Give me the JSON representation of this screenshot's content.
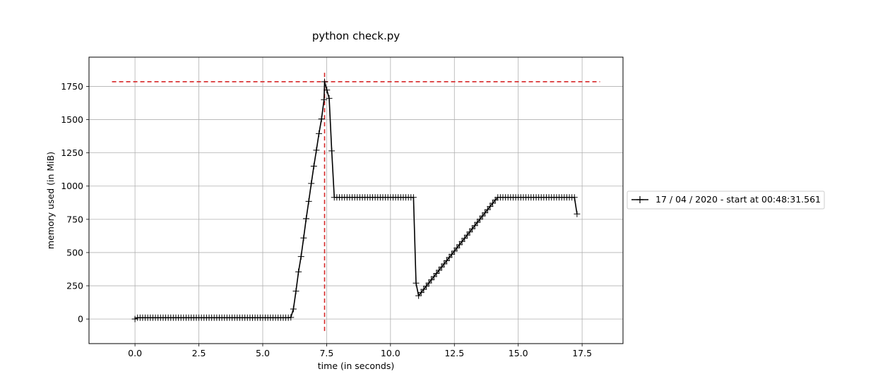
{
  "chart_data": {
    "type": "line",
    "title": "python check.py",
    "xlabel": "time (in seconds)",
    "ylabel": "memory used (in MiB)",
    "xlim": [
      -1.8,
      19.1
    ],
    "ylim": [
      -185,
      1970
    ],
    "x_ticks": [
      "0.0",
      "2.5",
      "5.0",
      "7.5",
      "10.0",
      "12.5",
      "15.0",
      "17.5"
    ],
    "y_ticks": [
      "0",
      "250",
      "500",
      "750",
      "1000",
      "1250",
      "1500",
      "1750"
    ],
    "grid": true,
    "legend": {
      "placement": "right",
      "entries": [
        "17 / 04 / 2020 - start at 00:48:31.561"
      ]
    },
    "series": [
      {
        "name": "17 / 04 / 2020 - start at 00:48:31.561",
        "color": "#000000",
        "marker": "+",
        "points": [
          [
            0.0,
            0
          ],
          [
            0.1,
            10
          ],
          [
            6.0,
            10
          ],
          [
            6.1,
            12
          ],
          [
            6.2,
            75
          ],
          [
            6.3,
            210
          ],
          [
            6.4,
            355
          ],
          [
            6.5,
            470
          ],
          [
            6.6,
            610
          ],
          [
            6.7,
            755
          ],
          [
            6.8,
            885
          ],
          [
            6.9,
            1020
          ],
          [
            7.0,
            1150
          ],
          [
            7.1,
            1270
          ],
          [
            7.2,
            1395
          ],
          [
            7.3,
            1505
          ],
          [
            7.4,
            1650
          ],
          [
            7.42,
            1785
          ],
          [
            7.6,
            1660
          ],
          [
            7.7,
            1265
          ],
          [
            7.8,
            915
          ],
          [
            10.9,
            915
          ],
          [
            11.0,
            270
          ],
          [
            11.1,
            175
          ],
          [
            14.1,
            895
          ],
          [
            14.2,
            915
          ],
          [
            17.2,
            915
          ],
          [
            17.3,
            790
          ]
        ]
      }
    ],
    "reference_lines": [
      {
        "orientation": "horizontal",
        "value": 1785,
        "from": -0.9,
        "to": 18.2,
        "color": "#d62728",
        "style": "dashed"
      },
      {
        "orientation": "vertical",
        "value": 7.42,
        "from": -90,
        "to": 1870,
        "color": "#d62728",
        "style": "dashed"
      }
    ]
  }
}
